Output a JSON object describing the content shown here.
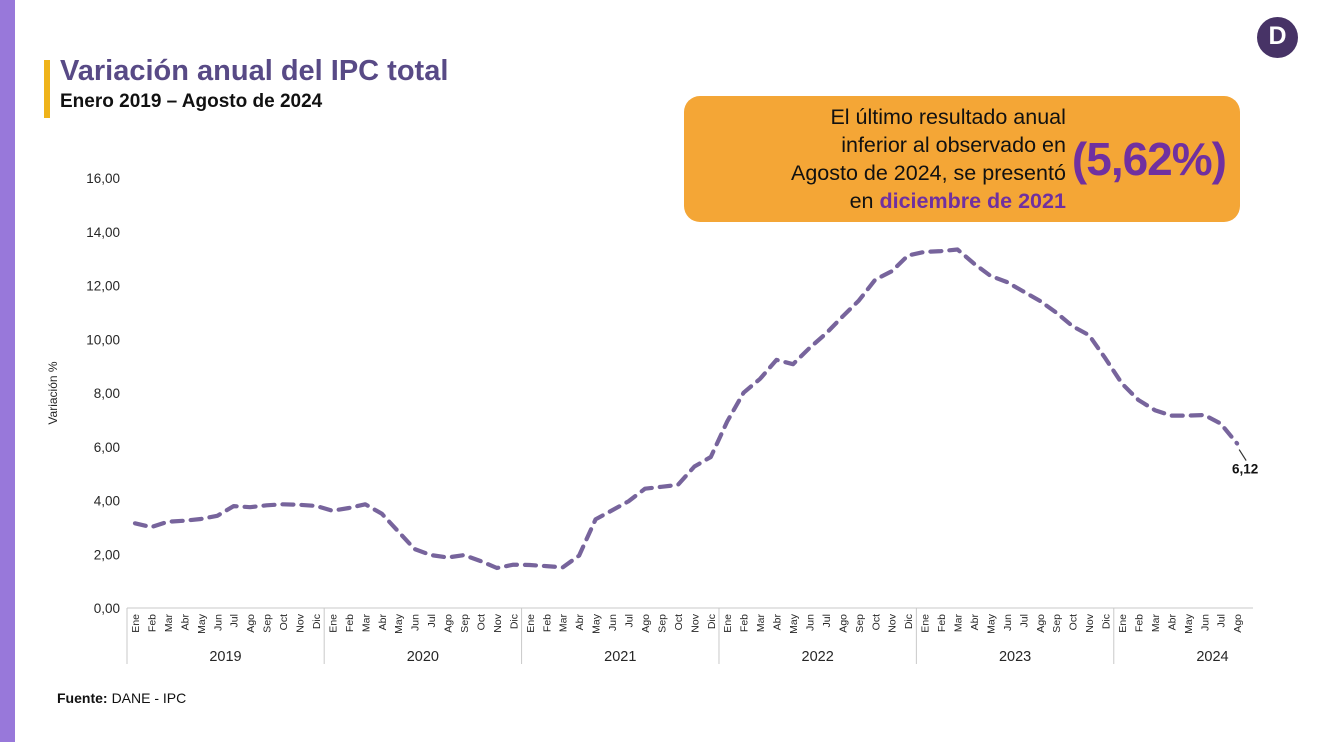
{
  "page": {
    "title": "Variación anual del IPC total",
    "subtitle": "Enero 2019 – Agosto de 2024",
    "source_label": "Fuente:",
    "source_value": "DANE - IPC",
    "logo_letter": "D"
  },
  "callout": {
    "line1": "El último resultado anual",
    "line2": "inferior al observado en",
    "line3": "Agosto de 2024, se presentó",
    "line4_prefix": "en ",
    "line4_highlight": "diciembre de 2021",
    "value": "(5,62%)"
  },
  "colors": {
    "brand_purple_title": "#584A86",
    "accent_yellow": "#EFB31A",
    "left_bar_purple": "#9878DA",
    "callout_orange": "#F4A636",
    "highlight_purple": "#7030A0",
    "line_purple": "#77649C",
    "logo_purple": "#473366",
    "axis_gray": "#C9C9C9",
    "label_dark": "#262626"
  },
  "chart_data": {
    "type": "line",
    "title": "Variación anual del IPC total",
    "subtitle": "Enero 2019 – Agosto de 2024",
    "xlabel": "",
    "ylabel": "Variación %",
    "ylim": [
      0,
      16
    ],
    "ytick_step": 2,
    "yticks": [
      "0,00",
      "2,00",
      "4,00",
      "6,00",
      "8,00",
      "10,00",
      "12,00",
      "14,00",
      "16,00"
    ],
    "grid": false,
    "legend": "none",
    "line_style": "dashed",
    "series_name": "Variación anual IPC total (%)",
    "years": [
      {
        "year": "2019",
        "months": [
          "Ene",
          "Feb",
          "Mar",
          "Abr",
          "May",
          "Jun",
          "Jul",
          "Ago",
          "Sep",
          "Oct",
          "Nov",
          "Dic"
        ],
        "values": [
          3.15,
          3.01,
          3.21,
          3.25,
          3.31,
          3.43,
          3.79,
          3.75,
          3.82,
          3.86,
          3.84,
          3.8
        ]
      },
      {
        "year": "2020",
        "months": [
          "Ene",
          "Feb",
          "Mar",
          "Abr",
          "May",
          "Jun",
          "Jul",
          "Ago",
          "Sep",
          "Oct",
          "Nov",
          "Dic"
        ],
        "values": [
          3.62,
          3.72,
          3.86,
          3.51,
          2.85,
          2.19,
          1.97,
          1.88,
          1.97,
          1.75,
          1.49,
          1.61
        ]
      },
      {
        "year": "2021",
        "months": [
          "Ene",
          "Feb",
          "Mar",
          "Abr",
          "May",
          "Jun",
          "Jul",
          "Ago",
          "Sep",
          "Oct",
          "Nov",
          "Dic"
        ],
        "values": [
          1.6,
          1.56,
          1.51,
          1.95,
          3.3,
          3.63,
          3.97,
          4.44,
          4.51,
          4.58,
          5.26,
          5.62
        ]
      },
      {
        "year": "2022",
        "months": [
          "Ene",
          "Feb",
          "Mar",
          "Abr",
          "May",
          "Jun",
          "Jul",
          "Ago",
          "Sep",
          "Oct",
          "Nov",
          "Dic"
        ],
        "values": [
          6.94,
          8.01,
          8.53,
          9.23,
          9.07,
          9.67,
          10.21,
          10.84,
          11.44,
          12.22,
          12.53,
          13.12
        ]
      },
      {
        "year": "2023",
        "months": [
          "Ene",
          "Feb",
          "Mar",
          "Abr",
          "May",
          "Jun",
          "Jul",
          "Ago",
          "Sep",
          "Oct",
          "Nov",
          "Dic"
        ],
        "values": [
          13.25,
          13.28,
          13.34,
          12.82,
          12.36,
          12.13,
          11.78,
          11.43,
          10.99,
          10.48,
          10.15,
          9.28
        ]
      },
      {
        "year": "2024",
        "months": [
          "Ene",
          "Feb",
          "Mar",
          "Abr",
          "May",
          "Jun",
          "Jul",
          "Ago"
        ],
        "values": [
          8.35,
          7.74,
          7.36,
          7.16,
          7.16,
          7.18,
          6.86,
          6.12
        ]
      }
    ],
    "end_point_label": "6,12"
  }
}
